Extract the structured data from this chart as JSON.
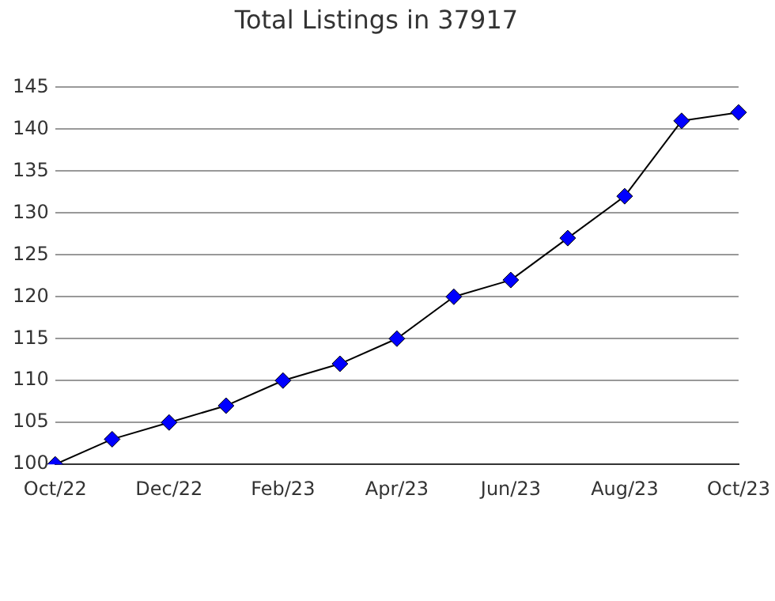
{
  "chart_data": {
    "type": "line",
    "title": "Total Listings in 37917",
    "categories": [
      "Oct/22",
      null,
      "Dec/22",
      null,
      "Feb/23",
      null,
      "Apr/23",
      null,
      "Jun/23",
      null,
      "Aug/23",
      null,
      "Oct/23"
    ],
    "series": [
      {
        "color": "#0000ff",
        "values": [
          100,
          103,
          105,
          107,
          110,
          112,
          115,
          120,
          122,
          127,
          132,
          141,
          142
        ]
      }
    ],
    "ylim": [
      100,
      145
    ],
    "yticks": [
      100,
      105,
      110,
      115,
      120,
      125,
      130,
      135,
      140,
      145
    ],
    "grid": "y",
    "legend": false,
    "marker": "diamond",
    "line_style": "solid"
  }
}
